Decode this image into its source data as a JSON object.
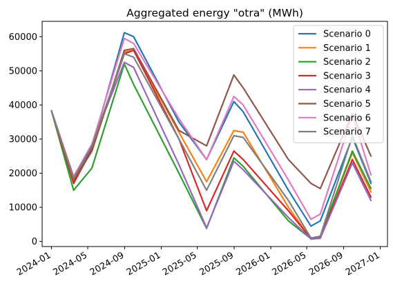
{
  "chart_data": {
    "type": "line",
    "title": "Aggregated energy \"otra\" (MWh)",
    "xlabel": "",
    "ylabel": "",
    "x_type": "date",
    "xlim": [
      "2023-12-01",
      "2027-01-25"
    ],
    "ylim": [
      -1500,
      64500
    ],
    "x_ticks": [
      "2024-01",
      "2024-05",
      "2024-09",
      "2025-01",
      "2025-05",
      "2025-09",
      "2026-01",
      "2026-05",
      "2026-09",
      "2027-01"
    ],
    "y_ticks": [
      0,
      10000,
      20000,
      30000,
      40000,
      50000,
      60000
    ],
    "grid": false,
    "legend_position": "top-right",
    "x": [
      "2024-01-01",
      "2024-03-15",
      "2024-05-15",
      "2024-08-31",
      "2024-10-01",
      "2025-03-01",
      "2025-06-01",
      "2025-08-31",
      "2025-10-01",
      "2026-03-01",
      "2026-05-15",
      "2026-06-15",
      "2026-09-30",
      "2026-12-01"
    ],
    "series": [
      {
        "name": "Scenario 0",
        "color": "#1f77b4",
        "values": [
          38300,
          18500,
          27500,
          61200,
          60000,
          35000,
          24000,
          41000,
          38000,
          15000,
          4500,
          6000,
          30500,
          17000
        ]
      },
      {
        "name": "Scenario 1",
        "color": "#ff7f0e",
        "values": [
          38300,
          17500,
          26500,
          55500,
          56000,
          32000,
          17500,
          32500,
          32000,
          10000,
          800,
          1500,
          26000,
          14500
        ]
      },
      {
        "name": "Scenario 2",
        "color": "#2ca02c",
        "values": [
          38300,
          15000,
          21500,
          52000,
          46000,
          20000,
          3800,
          24500,
          22000,
          6000,
          800,
          1500,
          26500,
          15500
        ]
      },
      {
        "name": "Scenario 3",
        "color": "#d62728",
        "values": [
          38300,
          17000,
          27000,
          55000,
          56000,
          30000,
          9000,
          26500,
          24000,
          9000,
          800,
          1200,
          24000,
          13000
        ]
      },
      {
        "name": "Scenario 4",
        "color": "#9467bd",
        "values": [
          38300,
          19000,
          28500,
          52500,
          51000,
          22500,
          4000,
          23500,
          21000,
          7000,
          700,
          900,
          23000,
          12000
        ]
      },
      {
        "name": "Scenario 5",
        "color": "#8c564b",
        "values": [
          38300,
          18000,
          26500,
          56000,
          56500,
          32500,
          28000,
          48800,
          45000,
          24000,
          17000,
          15500,
          37500,
          25000
        ]
      },
      {
        "name": "Scenario 6",
        "color": "#e377c2",
        "values": [
          38300,
          19000,
          28500,
          59500,
          58000,
          36000,
          24000,
          42500,
          40000,
          18000,
          6500,
          8000,
          37000,
          19500
        ]
      },
      {
        "name": "Scenario 7",
        "color": "#7f7f7f",
        "values": [
          38300,
          18500,
          28000,
          55000,
          54000,
          30000,
          15000,
          31000,
          30500,
          12000,
          1000,
          1500,
          31000,
          17500
        ]
      }
    ]
  }
}
